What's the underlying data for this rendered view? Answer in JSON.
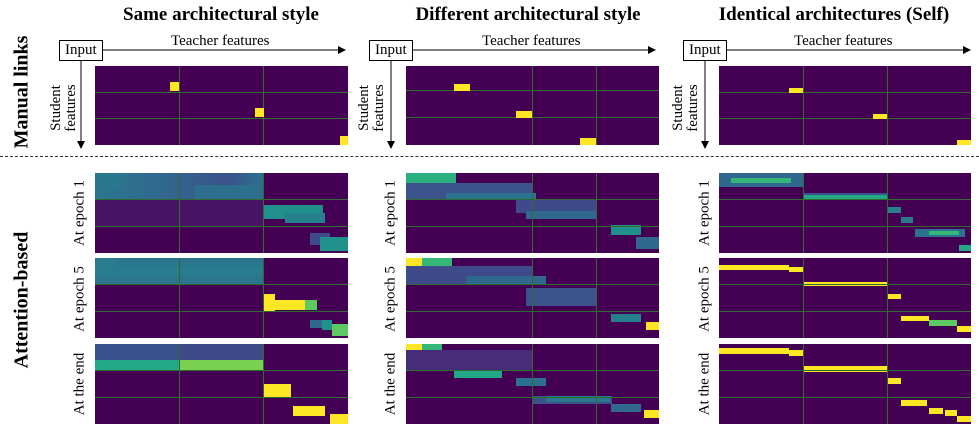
{
  "columns": [
    {
      "title": "Same architectural style"
    },
    {
      "title": "Different architectural style"
    },
    {
      "title": "Identical architectures (Self)"
    }
  ],
  "rows": {
    "manual": "Manual links",
    "attention": "Attention-based"
  },
  "axes": {
    "input": "Input",
    "teacher": "Teacher features",
    "student_line1": "Student",
    "student_line2": "features"
  },
  "epoch_labels": {
    "e1": "At epoch 1",
    "e5": "At epoch 5",
    "end": "At the end"
  },
  "colors": {
    "background": "#440154",
    "grid": "#2f6b2f",
    "yellow": "#fde725",
    "divider": "#333333"
  }
}
